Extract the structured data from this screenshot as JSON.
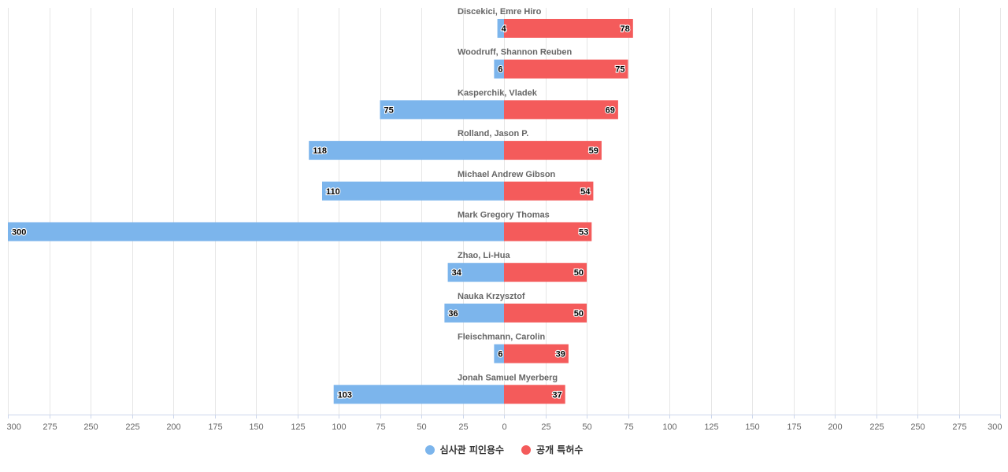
{
  "chart_data": {
    "type": "bar",
    "orientation": "horizontal-diverging",
    "categories": [
      "Discekici, Emre Hiro",
      "Woodruff, Shannon Reuben",
      "Kasperchik, Vladek",
      "Rolland, Jason P.",
      "Michael Andrew Gibson",
      "Mark Gregory Thomas",
      "Zhao, Li-Hua",
      "Nauka Krzysztof",
      "Fleischmann, Carolin",
      "Jonah Samuel Myerberg"
    ],
    "series": [
      {
        "name": "심사관 피인용수",
        "direction": "left",
        "color": "#7cb5ec",
        "values": [
          4,
          6,
          75,
          118,
          110,
          300,
          34,
          36,
          6,
          103
        ]
      },
      {
        "name": "공개 특허수",
        "direction": "right",
        "color": "#f45b5b",
        "values": [
          78,
          75,
          69,
          59,
          54,
          53,
          50,
          50,
          39,
          37
        ]
      }
    ],
    "xlim": [
      -300,
      300
    ],
    "x_ticks": [
      -300,
      -275,
      -250,
      -225,
      -200,
      -175,
      -150,
      -125,
      -100,
      -75,
      -50,
      -25,
      0,
      25,
      50,
      75,
      100,
      125,
      150,
      175,
      200,
      225,
      250,
      275,
      300
    ],
    "tick_labels_absolute": true,
    "grid": true,
    "legend_position": "bottom-center",
    "data_labels": true
  }
}
